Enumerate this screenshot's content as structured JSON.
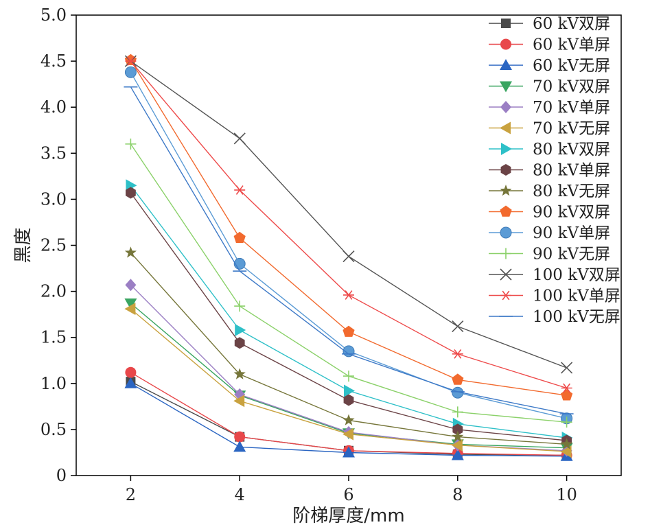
{
  "chart_data": {
    "type": "line",
    "title": "",
    "xlabel": "阶梯厚度/mm",
    "ylabel": "黑度",
    "x": [
      2,
      4,
      6,
      8,
      10
    ],
    "xticks": [
      "2",
      "4",
      "6",
      "8",
      "10"
    ],
    "xlim": [
      1,
      11
    ],
    "ylim": [
      0,
      5.0
    ],
    "yticks": [
      "0",
      "0.5",
      "1.0",
      "1.5",
      "2.0",
      "2.5",
      "3.0",
      "3.5",
      "4.0",
      "4.5",
      "5.0"
    ],
    "legend_position": "top-right",
    "grid": false,
    "series": [
      {
        "name": "60 kV双屏",
        "marker": "square",
        "color": "#4a4a4a",
        "values": [
          1.02,
          0.42,
          0.27,
          0.23,
          0.22
        ]
      },
      {
        "name": "60 kV单屏",
        "marker": "circle",
        "color": "#e8474a",
        "values": [
          1.12,
          0.42,
          0.27,
          0.24,
          0.22
        ]
      },
      {
        "name": "60 kV无屏",
        "marker": "triangle-up",
        "color": "#2a65c2",
        "values": [
          1.0,
          0.31,
          0.25,
          0.22,
          0.21
        ]
      },
      {
        "name": "70 kV双屏",
        "marker": "triangle-down",
        "color": "#3aa561",
        "values": [
          1.87,
          0.87,
          0.46,
          0.34,
          0.3
        ]
      },
      {
        "name": "70 kV单屏",
        "marker": "diamond",
        "color": "#9b7fc4",
        "values": [
          2.07,
          0.88,
          0.47,
          0.33,
          0.27
        ]
      },
      {
        "name": "70 kV无屏",
        "marker": "triangle-left",
        "color": "#c9a23f",
        "values": [
          1.81,
          0.81,
          0.45,
          0.33,
          0.26
        ]
      },
      {
        "name": "80 kV双屏",
        "marker": "triangle-right",
        "color": "#2ec0c8",
        "values": [
          3.15,
          1.58,
          0.92,
          0.56,
          0.41
        ]
      },
      {
        "name": "80 kV单屏",
        "marker": "hexagon",
        "color": "#6b4346",
        "values": [
          3.07,
          1.44,
          0.82,
          0.5,
          0.38
        ]
      },
      {
        "name": "80 kV无屏",
        "marker": "star",
        "color": "#76763a",
        "values": [
          2.42,
          1.1,
          0.6,
          0.42,
          0.34
        ]
      },
      {
        "name": "90 kV双屏",
        "marker": "pentagon",
        "color": "#f26a2e",
        "values": [
          4.51,
          2.58,
          1.56,
          1.04,
          0.87
        ]
      },
      {
        "name": "90 kV单屏",
        "marker": "sphere",
        "color": "#5b9bd5",
        "values": [
          4.38,
          2.3,
          1.35,
          0.9,
          0.62
        ]
      },
      {
        "name": "90 kV无屏",
        "marker": "plus",
        "color": "#8bd16a",
        "values": [
          3.6,
          1.84,
          1.08,
          0.69,
          0.58
        ]
      },
      {
        "name": "100 kV双屏",
        "marker": "x",
        "color": "#545454",
        "values": [
          4.5,
          3.66,
          2.38,
          1.62,
          1.17
        ]
      },
      {
        "name": "100 kV单屏",
        "marker": "asterisk",
        "color": "#ee4b4b",
        "values": [
          4.5,
          3.1,
          1.96,
          1.32,
          0.95
        ]
      },
      {
        "name": "100 kV无屏",
        "marker": "hline",
        "color": "#3d79c7",
        "values": [
          4.22,
          2.22,
          1.32,
          0.91,
          0.67
        ]
      }
    ]
  }
}
